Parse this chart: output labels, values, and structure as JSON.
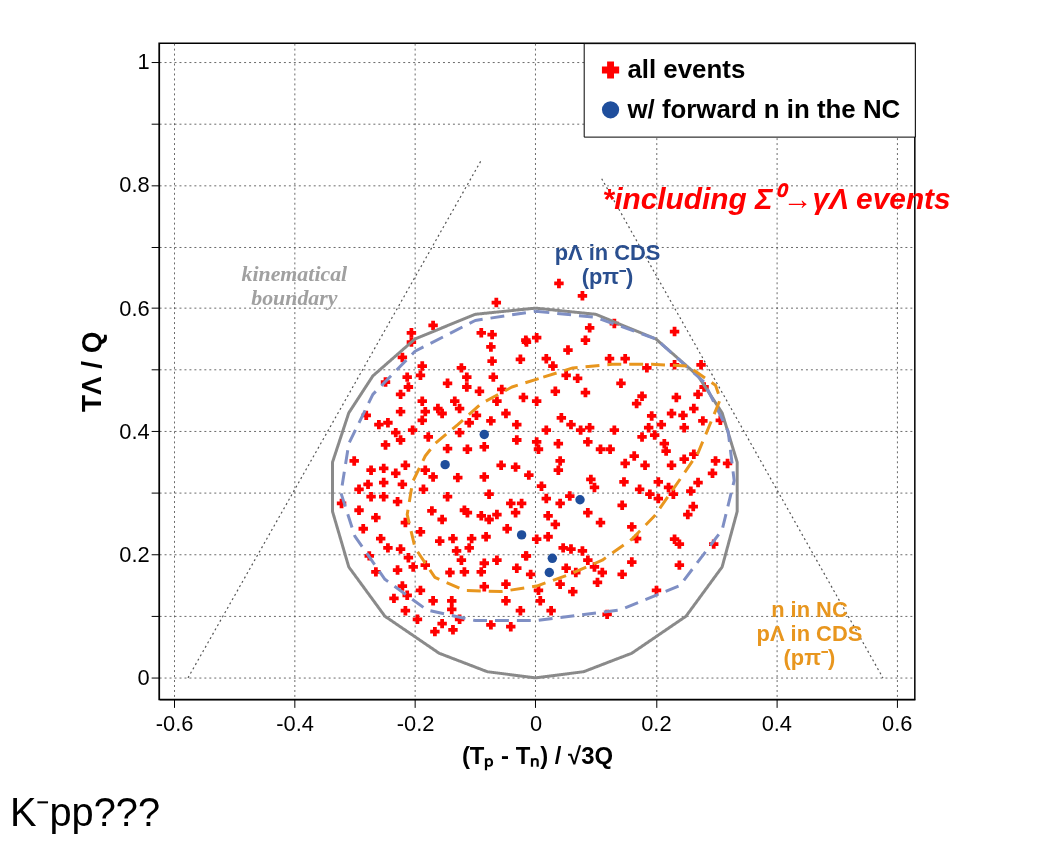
{
  "chart_data": {
    "type": "scatter",
    "xlabel": "(Tₚ - Tₙ) / √3Q",
    "ylabel": "TΛ / Q",
    "xlim": [
      -0.625,
      0.63
    ],
    "ylim": [
      -0.035,
      1.03
    ],
    "xticks": [
      -0.6,
      -0.4,
      -0.2,
      0,
      0.2,
      0.4,
      0.6
    ],
    "yticks": [
      0,
      {
        "value": 0.1,
        "label": null
      },
      0.2,
      {
        "value": 0.3,
        "label": null
      },
      0.4,
      {
        "value": 0.5,
        "label": null
      },
      0.6,
      {
        "value": 0.7,
        "label": null
      },
      0.8,
      {
        "value": 0.9,
        "label": null
      },
      1
    ],
    "grid": true,
    "legend": "top right",
    "annotations": [
      "*including Σ⁰→γΛ events",
      "kinematical\nboundary",
      "pΛ in CDS\n(pπ⁻)",
      "n  in NC\npΛ in CDS\n(pπ⁻)",
      "K⁻pp???"
    ],
    "series": [
      {
        "type": "scatter",
        "name": "all events",
        "color": "#ff0000",
        "marker": "cross",
        "x": [
          -0.065,
          -0.17,
          -0.206,
          -0.09,
          -0.072,
          -0.016,
          -0.206,
          -0.074,
          -0.221,
          -0.025,
          -0.072,
          -0.188,
          -0.123,
          -0.191,
          -0.114,
          -0.07,
          -0.213,
          -0.249,
          -0.146,
          -0.114,
          -0.211,
          -0.093,
          -0.056,
          -0.224,
          -0.02,
          -0.188,
          -0.134,
          -0.064,
          -0.162,
          -0.224,
          -0.183,
          -0.049,
          -0.281,
          -0.126,
          -0.098,
          -0.188,
          -0.11,
          -0.155,
          -0.031,
          -0.26,
          -0.245,
          -0.074,
          -0.126,
          -0.232,
          -0.204,
          -0.178,
          -0.031,
          -0.224,
          -0.249,
          -0.146,
          -0.113,
          -0.085,
          0.039,
          0.078,
          0.09,
          0.083,
          0.131,
          0.231,
          0.002,
          0.054,
          -0.015,
          0.018,
          0.123,
          0.149,
          0.029,
          0.185,
          0.231,
          0.275,
          0.051,
          0.07,
          0.142,
          0.28,
          0.033,
          0.083,
          0.234,
          0.27,
          0.177,
          0.168,
          0.002,
          0.226,
          0.245,
          0.263,
          0.278,
          0.307,
          0.193,
          0.043,
          0.059,
          0.188,
          0.209,
          0.247,
          0.09,
          0.075,
          0.131,
          0.018,
          0.198,
          0.177,
          0.002,
          0.038,
          0.087,
          0.214,
          -0.301,
          -0.273,
          -0.252,
          -0.216,
          -0.232,
          -0.183,
          -0.17,
          -0.129,
          -0.085,
          -0.033,
          -0.057,
          -0.293,
          -0.278,
          -0.252,
          -0.221,
          -0.186,
          -0.273,
          -0.252,
          -0.229,
          -0.146,
          -0.077,
          -0.322,
          -0.293,
          -0.265,
          -0.216,
          -0.172,
          -0.155,
          -0.118,
          -0.113,
          -0.09,
          -0.077,
          -0.064,
          -0.041,
          -0.023,
          -0.286,
          -0.257,
          -0.191,
          -0.159,
          -0.137,
          -0.106,
          -0.082,
          -0.047,
          -0.033,
          -0.245,
          -0.224,
          -0.276,
          -0.211,
          -0.131,
          -0.11,
          -0.123,
          -0.085,
          -0.09,
          -0.064,
          -0.031,
          -0.015,
          -0.229,
          -0.265,
          -0.203,
          -0.183,
          -0.142,
          -0.118,
          -0.221,
          -0.191,
          -0.235,
          -0.213,
          -0.17,
          -0.139,
          -0.085,
          -0.049,
          -0.049,
          -0.139,
          -0.216,
          -0.025,
          -0.196,
          -0.155,
          -0.126,
          -0.074,
          -0.041,
          -0.167,
          -0.137,
          0.005,
          0.041,
          0.038,
          0.108,
          0.124,
          0.164,
          0.149,
          0.182,
          0.217,
          0.226,
          0.247,
          0.263,
          0.299,
          0.294,
          0.319,
          -0.011,
          0.01,
          0.092,
          0.098,
          0.147,
          0.173,
          0.204,
          0.221,
          0.258,
          0.27,
          0.19,
          0.229,
          0.018,
          0.041,
          0.057,
          0.144,
          0.204,
          0.087,
          0.108,
          0.021,
          0.033,
          0.262,
          0.253,
          0.16,
          0.168,
          0.231,
          0.239,
          0.002,
          0.021,
          0.046,
          0.078,
          0.059,
          -0.016,
          0.087,
          0.16,
          0.239,
          0.296,
          0.051,
          0.067,
          0.111,
          0.144,
          0.098,
          -0.008,
          0.103,
          0.041,
          0.062,
          0.005,
          0.201,
          0.008,
          0.026,
          0.119
        ],
        "values": [
          0.609,
          0.572,
          0.56,
          0.56,
          0.557,
          0.548,
          0.545,
          0.537,
          0.52,
          0.517,
          0.514,
          0.506,
          0.503,
          0.491,
          0.488,
          0.488,
          0.488,
          0.48,
          0.478,
          0.472,
          0.472,
          0.465,
          0.468,
          0.46,
          0.455,
          0.449,
          0.449,
          0.449,
          0.437,
          0.432,
          0.432,
          0.429,
          0.426,
          0.437,
          0.426,
          0.418,
          0.414,
          0.429,
          0.411,
          0.411,
          0.414,
          0.417,
          0.398,
          0.398,
          0.402,
          0.391,
          0.386,
          0.386,
          0.378,
          0.372,
          0.371,
          0.375,
          0.64,
          0.62,
          0.568,
          0.548,
          0.575,
          0.562,
          0.552,
          0.532,
          0.545,
          0.518,
          0.518,
          0.518,
          0.506,
          0.503,
          0.508,
          0.508,
          0.491,
          0.486,
          0.478,
          0.472,
          0.465,
          0.463,
          0.455,
          0.46,
          0.457,
          0.445,
          0.449,
          0.429,
          0.426,
          0.437,
          0.417,
          0.418,
          0.425,
          0.422,
          0.411,
          0.406,
          0.411,
          0.406,
          0.406,
          0.402,
          0.402,
          0.402,
          0.394,
          0.391,
          0.383,
          0.38,
          0.383,
          0.38,
          0.352,
          0.337,
          0.34,
          0.345,
          0.332,
          0.337,
          0.326,
          0.325,
          0.326,
          0.342,
          0.345,
          0.306,
          0.314,
          0.317,
          0.314,
          0.306,
          0.294,
          0.294,
          0.286,
          0.294,
          0.298,
          0.283,
          0.272,
          0.26,
          0.252,
          0.271,
          0.257,
          0.272,
          0.268,
          0.263,
          0.257,
          0.265,
          0.283,
          0.283,
          0.242,
          0.226,
          0.237,
          0.222,
          0.226,
          0.226,
          0.229,
          0.242,
          0.268,
          0.211,
          0.209,
          0.198,
          0.195,
          0.206,
          0.211,
          0.191,
          0.186,
          0.172,
          0.191,
          0.178,
          0.198,
          0.175,
          0.172,
          0.18,
          0.183,
          0.171,
          0.172,
          0.149,
          0.142,
          0.129,
          0.134,
          0.125,
          0.125,
          0.148,
          0.152,
          0.125,
          0.111,
          0.109,
          0.109,
          0.095,
          0.088,
          0.095,
          0.086,
          0.083,
          0.075,
          0.078,
          0.371,
          0.352,
          0.337,
          0.371,
          0.371,
          0.36,
          0.348,
          0.345,
          0.368,
          0.345,
          0.355,
          0.363,
          0.352,
          0.332,
          0.348,
          0.329,
          0.311,
          0.322,
          0.309,
          0.318,
          0.306,
          0.318,
          0.309,
          0.303,
          0.317,
          0.298,
          0.298,
          0.291,
          0.283,
          0.295,
          0.28,
          0.291,
          0.268,
          0.252,
          0.263,
          0.249,
          0.278,
          0.265,
          0.245,
          0.226,
          0.225,
          0.217,
          0.225,
          0.229,
          0.211,
          0.206,
          0.209,
          0.198,
          0.191,
          0.188,
          0.183,
          0.217,
          0.178,
          0.171,
          0.171,
          0.168,
          0.18,
          0.168,
          0.155,
          0.152,
          0.14,
          0.142,
          0.142,
          0.125,
          0.109,
          0.103
        ]
      },
      {
        "type": "scatter",
        "name": "w/ forward n in the NC",
        "color": "#1f4e9c",
        "marker": "circle",
        "x": [
          -0.15,
          -0.085,
          0.074,
          -0.023,
          0.028,
          0.023
        ],
        "values": [
          0.346,
          0.395,
          0.289,
          0.232,
          0.194,
          0.171
        ]
      },
      {
        "type": "line",
        "color": "#555555",
        "line_style": "dotted",
        "x": [
          -0.577,
          -0.09
        ],
        "values": [
          0,
          0.84
        ]
      },
      {
        "type": "line",
        "color": "#555555",
        "line_style": "dotted",
        "x": [
          0.11,
          0.577
        ],
        "values": [
          0.81,
          0
        ]
      }
    ]
  }
}
